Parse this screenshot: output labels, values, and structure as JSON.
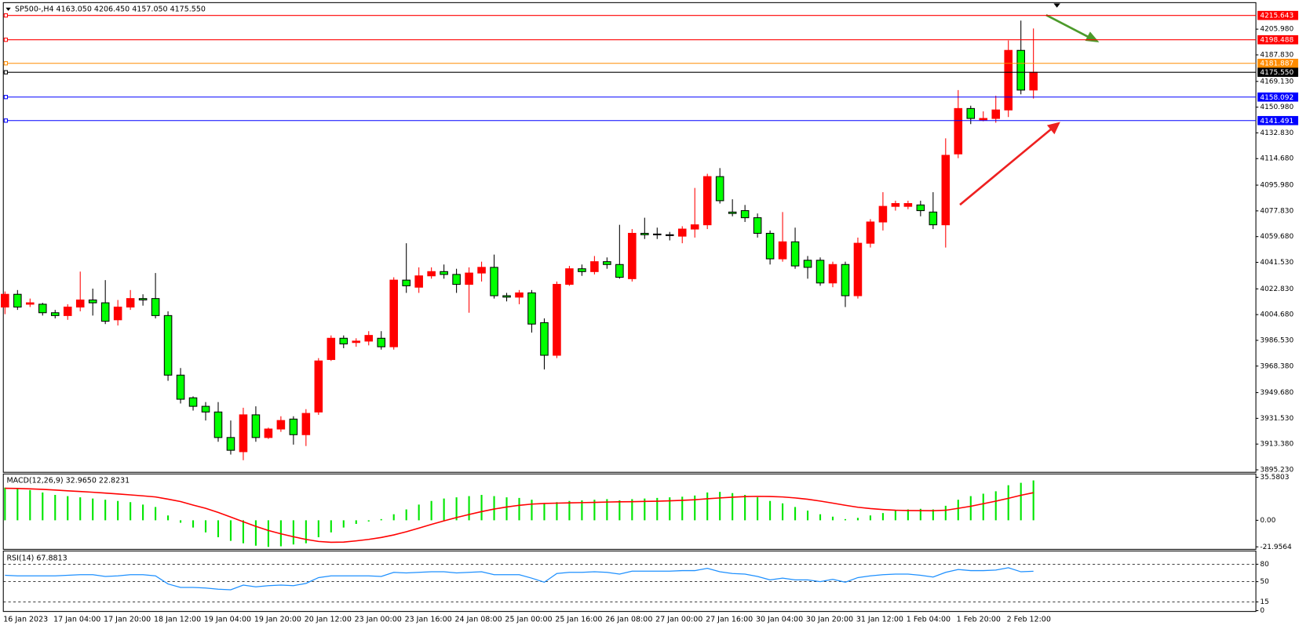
{
  "chart_data": [
    {
      "type": "candlestick",
      "title": "SP500-,H4  4163.050 4206.450 4157.050 4175.550",
      "categories": [
        "16 Jan 2023",
        null,
        null,
        null,
        "17 Jan 04:00",
        null,
        null,
        null,
        "17 Jan 20:00",
        null,
        null,
        null,
        "18 Jan 12:00",
        null,
        null,
        null,
        "19 Jan 04:00",
        null,
        null,
        null,
        "19 Jan 20:00",
        null,
        null,
        null,
        "20 Jan 12:00",
        null,
        null,
        null,
        "23 Jan 00:00",
        null,
        null,
        null,
        "23 Jan 16:00",
        null,
        null,
        null,
        "24 Jan 08:00",
        null,
        null,
        null,
        "25 Jan 00:00",
        null,
        null,
        null,
        "25 Jan 16:00",
        null,
        null,
        null,
        "26 Jan 08:00",
        null,
        null,
        null,
        "27 Jan 00:00",
        null,
        null,
        null,
        "27 Jan 16:00",
        null,
        null,
        null,
        "30 Jan 04:00",
        null,
        null,
        null,
        "30 Jan 20:00",
        null,
        null,
        null,
        "31 Jan 12:00",
        null,
        null,
        null,
        "1 Feb 04:00",
        null,
        null,
        null,
        "1 Feb 20:00",
        null,
        null,
        null,
        "2 Feb 12:00",
        null,
        null
      ],
      "open": [
        4010,
        4019,
        4012,
        4012,
        4006,
        4004,
        4010,
        4015,
        4013,
        4001,
        4010,
        4016,
        4016,
        4004,
        3962,
        3946,
        3940,
        3936,
        3918,
        3908,
        3934,
        3918,
        3924,
        3931,
        3920,
        3936,
        3973,
        3988,
        3985,
        3986,
        3988,
        3982,
        4029,
        4024,
        4032,
        4035,
        4033,
        4026,
        4034,
        4038,
        4018,
        4017,
        4020,
        3999,
        3976,
        4026,
        4037,
        4035,
        4042,
        4040,
        4030,
        4062,
        4061.5,
        4061,
        4060,
        4065,
        4068,
        4102,
        4077,
        4078,
        4073,
        4062,
        4044,
        4056,
        4043,
        4043,
        4027,
        4040,
        4018,
        4055,
        4070,
        4081,
        4081,
        4082,
        4077,
        4068,
        4118,
        4150,
        4142,
        4143,
        4149,
        4191,
        4163.05
      ],
      "high": [
        4021,
        4022,
        4016,
        4013,
        4008,
        4012,
        4035,
        4023,
        4029,
        4015,
        4022,
        4019,
        4034,
        4007,
        3967,
        3947,
        3943,
        3943,
        3930,
        3939,
        3940,
        3925,
        3933,
        3933,
        3938,
        3974,
        3990,
        3990,
        3988,
        3993,
        3993,
        4031,
        4055,
        4038,
        4038,
        4040,
        4037,
        4038,
        4042,
        4047,
        4020,
        4022,
        4022,
        4002,
        4028,
        4039,
        4040,
        4046,
        4045,
        4068,
        4065,
        4073,
        4066,
        4063,
        4067,
        4094,
        4104,
        4108,
        4086,
        4082,
        4076,
        4064,
        4077,
        4066,
        4046,
        4045,
        4042,
        4042,
        4059,
        4072,
        4091,
        4085,
        4085,
        4085,
        4091,
        4129,
        4163,
        4152,
        4148,
        4159,
        4198,
        4212,
        4206.45
      ],
      "low": [
        4005,
        4008,
        4010,
        4004,
        4002,
        4001,
        4007,
        4004,
        3998,
        3997,
        4008,
        4011,
        4002,
        3958,
        3942,
        3937,
        3930,
        3915,
        3906,
        3902,
        3915,
        3917,
        3922,
        3913,
        3912,
        3934,
        3972,
        3981,
        3982,
        3983,
        3980,
        3980,
        4020,
        4020,
        4030,
        4030,
        4020,
        4006,
        4028,
        4016,
        4014,
        4012,
        3992,
        3966,
        3974,
        4025,
        4032,
        4033,
        4037,
        4030,
        4028,
        4058,
        4058,
        4057,
        4055,
        4059,
        4065,
        4083,
        4074,
        4070,
        4059,
        4040,
        4042,
        4037,
        4030,
        4025,
        4024,
        4010,
        4016,
        4052,
        4064,
        4078,
        4079,
        4074,
        4065,
        4052,
        4115,
        4139,
        4141,
        4140,
        4144,
        4160,
        4157.05
      ],
      "close": [
        4019,
        4010,
        4013,
        4006,
        4004,
        4010,
        4015,
        4013,
        4000,
        4010,
        4016,
        4015,
        4004,
        3962,
        3945,
        3940,
        3936,
        3918,
        3909,
        3934,
        3918,
        3924,
        3930,
        3920,
        3935,
        3972,
        3988,
        3984,
        3986,
        3990,
        3982,
        4029,
        4025,
        4032,
        4035,
        4033,
        4026,
        4034,
        4038,
        4018,
        4017,
        4020,
        3998,
        3976,
        4026,
        4037,
        4035,
        4042,
        4040,
        4031,
        4062,
        4061,
        4061,
        4060.5,
        4065,
        4068,
        4102,
        4085,
        4076,
        4073,
        4062,
        4044,
        4056,
        4039,
        4038,
        4027,
        4040,
        4018,
        4055,
        4070,
        4081,
        4083,
        4083,
        4078,
        4068,
        4117,
        4150,
        4143,
        4143,
        4149,
        4191,
        4163,
        4175.55
      ],
      "up_color": "#ff0000",
      "down_color": "#00ff00",
      "ylim": [
        3894.06,
        4224.09
      ],
      "yticks": [
        {
          "value": 4205.98,
          "label": "4205.980"
        },
        {
          "value": 4187.83,
          "label": "4187.830"
        },
        {
          "value": 4169.13,
          "label": "4169.130"
        },
        {
          "value": 4150.98,
          "label": "4150.980"
        },
        {
          "value": 4132.83,
          "label": "4132.830"
        },
        {
          "value": 4114.68,
          "label": "4114.680"
        },
        {
          "value": 4095.98,
          "label": "4095.980"
        },
        {
          "value": 4077.83,
          "label": "4077.830"
        },
        {
          "value": 4059.68,
          "label": "4059.680"
        },
        {
          "value": 4041.53,
          "label": "4041.530"
        },
        {
          "value": 4022.83,
          "label": "4022.830"
        },
        {
          "value": 4004.68,
          "label": "4004.680"
        },
        {
          "value": 3986.53,
          "label": "3986.530"
        },
        {
          "value": 3968.38,
          "label": "3968.380"
        },
        {
          "value": 3949.68,
          "label": "3949.680"
        },
        {
          "value": 3931.53,
          "label": "3931.530"
        },
        {
          "value": 3913.38,
          "label": "3913.380"
        },
        {
          "value": 3895.23,
          "label": "3895.230"
        }
      ],
      "levels": [
        {
          "value": 4215.643,
          "color": "#ff0000"
        },
        {
          "value": 4198.488,
          "color": "#ff0000"
        },
        {
          "value": 4181.887,
          "color": "#ff8c00"
        },
        {
          "value": 4175.55,
          "label": "4175.550",
          "color": "#000000"
        },
        {
          "value": 4158.092,
          "color": "#0000ff"
        },
        {
          "value": 4141.491,
          "color": "#0000ff"
        }
      ]
    },
    {
      "type": "macd",
      "title": "MACD(12,26,9) 32.9650 22.8231",
      "values": [
        27,
        26,
        25,
        23,
        21,
        20,
        19,
        18,
        17,
        16,
        15,
        13,
        11,
        4,
        -2,
        -6,
        -10,
        -14,
        -17,
        -19,
        -21,
        -22,
        -21.5,
        -20,
        -19,
        -14,
        -10,
        -6,
        -3,
        -1,
        1,
        5,
        9,
        13,
        16,
        18,
        19,
        20,
        21,
        20,
        19,
        18.5,
        17,
        14,
        15,
        16,
        16.5,
        17,
        17.5,
        16.5,
        17.5,
        18,
        18.5,
        19,
        19.5,
        20.5,
        23,
        23.5,
        22.5,
        21,
        19,
        16,
        14,
        11,
        8,
        5,
        3,
        1,
        2,
        4,
        6,
        8,
        9,
        9.5,
        9,
        12,
        17,
        20,
        22,
        24,
        29,
        31,
        32.965
      ],
      "color": "#00e600",
      "signal": [
        26.5,
        26.3,
        26.0,
        25.6,
        25.0,
        24.4,
        23.8,
        23.2,
        22.5,
        21.8,
        21.0,
        20.2,
        19.3,
        17.5,
        15.5,
        12.6,
        9.9,
        6.5,
        2.7,
        -1.2,
        -5,
        -8.4,
        -11.2,
        -13.6,
        -15.8,
        -17.5,
        -18.2,
        -18.0,
        -17.0,
        -15.8,
        -14.2,
        -12.1,
        -9.5,
        -6.5,
        -3.4,
        -0.5,
        2.3,
        4.8,
        7.2,
        9.3,
        11.0,
        12.4,
        13.4,
        13.9,
        14.2,
        14.4,
        14.6,
        14.8,
        15.1,
        15.3,
        15.4,
        15.6,
        15.8,
        16.1,
        16.5,
        17.0,
        17.8,
        18.5,
        19.1,
        19.6,
        19.8,
        19.7,
        19.3,
        18.5,
        17.4,
        15.9,
        14.2,
        12.4,
        10.8,
        9.7,
        8.9,
        8.3,
        8.1,
        8.0,
        7.9,
        8.3,
        9.9,
        11.6,
        13.7,
        15.8,
        18.2,
        20.7,
        22.8231
      ],
      "signal_color": "#ff0000",
      "ylim": [
        -21.9564,
        35.5803
      ],
      "yticks": [
        35.5803,
        {
          "value": 0,
          "label": "0.00"
        },
        -21.9564
      ]
    },
    {
      "type": "line",
      "title": "RSI(14) 67.8813",
      "values": [
        61,
        60,
        60,
        60,
        60,
        61,
        62,
        62,
        59,
        60,
        62,
        62,
        60,
        46,
        40,
        40,
        39,
        37,
        36,
        44,
        41,
        43,
        44,
        43,
        47,
        57,
        60,
        60,
        60,
        60,
        59,
        66,
        65,
        66,
        67,
        67,
        65,
        66,
        67,
        62,
        62,
        62,
        56,
        49,
        64,
        66,
        66,
        67,
        66,
        63,
        68,
        68,
        68,
        68,
        69,
        69,
        73,
        67,
        64,
        63,
        59,
        53,
        56,
        53,
        53,
        50,
        54,
        49,
        57,
        60,
        62,
        63,
        63,
        61,
        58,
        66,
        71,
        69,
        69,
        70,
        74,
        67,
        67.8813
      ],
      "color": "#1e90ff",
      "ylim": [
        0,
        100
      ],
      "yticks": [
        0,
        15,
        50,
        80
      ]
    }
  ]
}
